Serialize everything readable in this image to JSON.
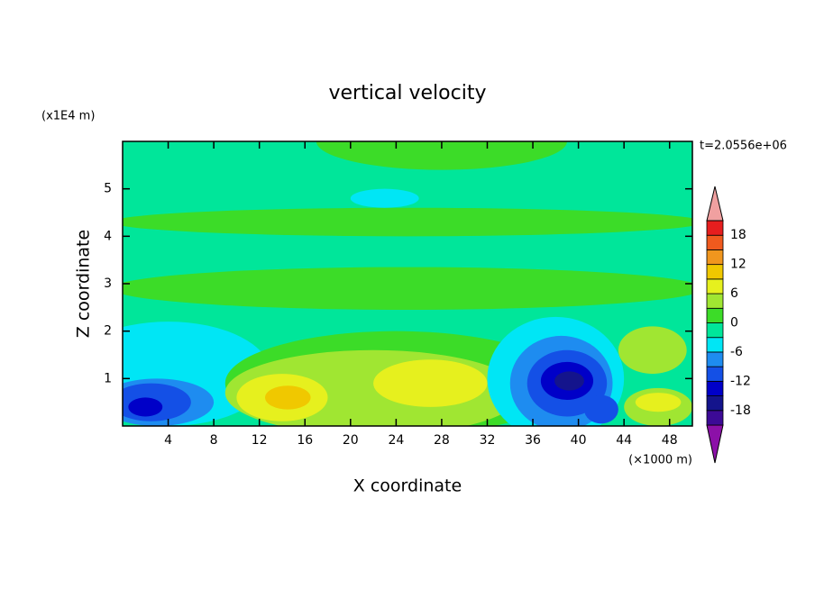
{
  "chart_data": {
    "type": "contour",
    "title": "vertical velocity",
    "x_label": "X coordinate",
    "y_label": "Z coordinate",
    "x_unit": "(×1000 m)",
    "y_unit": "(x1E4 m)",
    "time_label": "t=2.0556e+06",
    "xlim": [
      0,
      50
    ],
    "ylim": [
      0,
      6
    ],
    "xticks": [
      4,
      8,
      12,
      16,
      20,
      24,
      28,
      32,
      36,
      40,
      44,
      48
    ],
    "yticks": [
      1,
      2,
      3,
      4,
      5
    ],
    "base": -1,
    "field": [
      {
        "x": 28,
        "y": 6,
        "rx": 11,
        "ry": 0.6,
        "value": 1
      },
      {
        "x": 25,
        "y": 2.9,
        "rx": 26,
        "ry": 0.45,
        "value": 1
      },
      {
        "x": 25,
        "y": 4.3,
        "rx": 26,
        "ry": 0.3,
        "value": 1
      },
      {
        "x": 23,
        "y": 4.8,
        "rx": 3,
        "ry": 0.2,
        "value": -4
      },
      {
        "x": 4,
        "y": 1.1,
        "rx": 9,
        "ry": 1.1,
        "value": -4
      },
      {
        "x": 3,
        "y": 0.5,
        "rx": 5,
        "ry": 0.5,
        "value": -7
      },
      {
        "x": 2.5,
        "y": 0.5,
        "rx": 3.5,
        "ry": 0.4,
        "value": -10
      },
      {
        "x": 2,
        "y": 0.4,
        "rx": 1.5,
        "ry": 0.2,
        "value": -13
      },
      {
        "x": 24,
        "y": 0.9,
        "rx": 15,
        "ry": 1.1,
        "value": 1
      },
      {
        "x": 22,
        "y": 0.7,
        "rx": 13,
        "ry": 0.9,
        "value": 4
      },
      {
        "x": 14,
        "y": 0.6,
        "rx": 4,
        "ry": 0.5,
        "value": 7
      },
      {
        "x": 14.5,
        "y": 0.6,
        "rx": 2,
        "ry": 0.25,
        "value": 10
      },
      {
        "x": 27,
        "y": 0.9,
        "rx": 5,
        "ry": 0.5,
        "value": 7
      },
      {
        "x": 38,
        "y": 1,
        "rx": 6,
        "ry": 1.3,
        "value": -4
      },
      {
        "x": 38.5,
        "y": 0.9,
        "rx": 4.5,
        "ry": 1,
        "value": -7
      },
      {
        "x": 39,
        "y": 0.9,
        "rx": 3.5,
        "ry": 0.7,
        "value": -10
      },
      {
        "x": 39,
        "y": 0.95,
        "rx": 2.3,
        "ry": 0.4,
        "value": -13
      },
      {
        "x": 39.2,
        "y": 0.95,
        "rx": 1.3,
        "ry": 0.2,
        "value": -16
      },
      {
        "x": 42,
        "y": 0.35,
        "rx": 1.5,
        "ry": 0.3,
        "value": -10
      },
      {
        "x": 47,
        "y": 0.4,
        "rx": 3,
        "ry": 0.4,
        "value": 4
      },
      {
        "x": 46.5,
        "y": 1.6,
        "rx": 3,
        "ry": 0.5,
        "value": 4
      },
      {
        "x": 47,
        "y": 0.5,
        "rx": 2,
        "ry": 0.2,
        "value": 7
      }
    ],
    "colorbar": {
      "levels": [
        -21,
        -18,
        -15,
        -12,
        -9,
        -6,
        -3,
        0,
        3,
        6,
        9,
        12,
        15,
        18,
        21
      ],
      "colors": [
        "#8c10a8",
        "#3c0a96",
        "#14148c",
        "#0000c8",
        "#1450e6",
        "#1e8cf0",
        "#00e6f5",
        "#00e69a",
        "#3cdc28",
        "#a0e632",
        "#e6f01e",
        "#f0c800",
        "#f0961e",
        "#f05a1e",
        "#e61e1e",
        "#f0a0a0"
      ],
      "labels": [
        -18,
        -12,
        -6,
        0,
        6,
        12,
        18
      ]
    }
  }
}
